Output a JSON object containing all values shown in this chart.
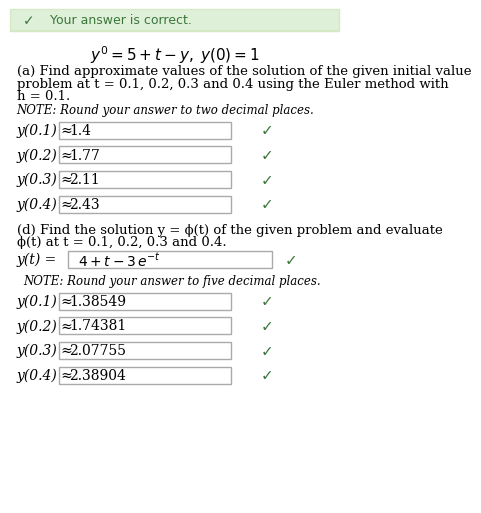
{
  "banner_text": "Your answer is correct.",
  "banner_bg": "#dff0d8",
  "banner_text_color": "#3c763d",
  "banner_check_color": "#3c763d",
  "bg_color": "#ffffff",
  "border_color": "#d6e9c6",
  "equation_title": "y' = 5 + t - y,  y(0) = 1",
  "part_a_header": "(a) Find approximate values of the solution of the given initial value\nproblem at t = 0.1, 0.2, 0.3 and 0.4 using the Euler method with\nh = 0.1.",
  "note_a": "NOTE: Round your answer to two decimal places.",
  "part_a_rows": [
    {
      "label": "y(0.1) ≈",
      "value": "1.4"
    },
    {
      "label": "y(0.2) ≈",
      "value": "1.77"
    },
    {
      "label": "y(0.3) ≈",
      "value": "2.11"
    },
    {
      "label": "y(0.4) ≈",
      "value": "2.43"
    }
  ],
  "part_d_header": "(d) Find the solution y = ϕ(t) of the given problem and evaluate\nϕ(t) at t = 0.1, 0.2, 0.3 and 0.4.",
  "yt_label": "y(t) =",
  "yt_value": "4 + t - 3 e^{-t}",
  "note_d": "NOTE: Round your answer to five decimal places.",
  "part_d_rows": [
    {
      "label": "y(0.1) ≈",
      "value": "1.38549"
    },
    {
      "label": "y(0.2) ≈",
      "value": "1.74381"
    },
    {
      "label": "y(0.3) ≈",
      "value": "2.07755"
    },
    {
      "label": "y(0.4) ≈",
      "value": "2.38904"
    }
  ],
  "check_color": "#3c763d",
  "box_border_color": "#aaaaaa",
  "text_color": "#000000"
}
